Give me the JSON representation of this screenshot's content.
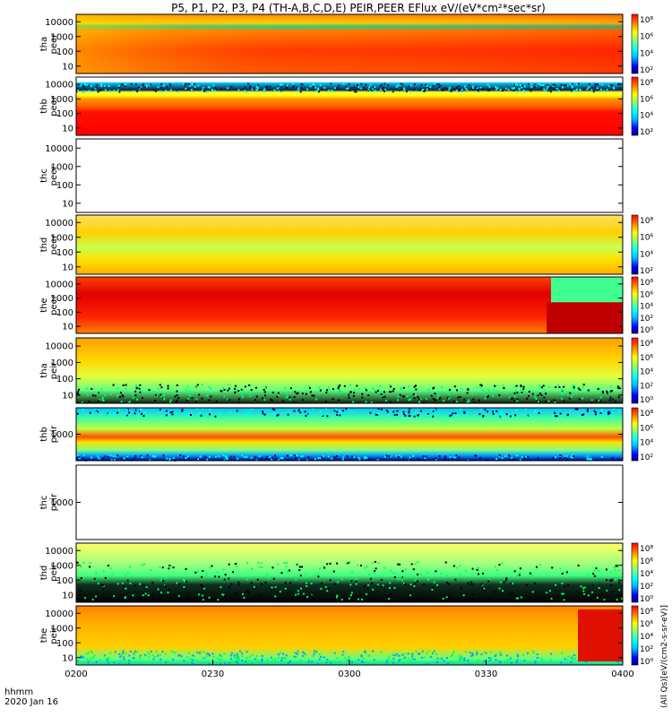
{
  "chart_data": {
    "type": "heatmap",
    "title": "P5, P1, P2, P3, P4 (TH-A,B,C,D,E) PEIR,PEER EFlux eV/(eV*cm²*sec*sr)",
    "x_axis": {
      "ticks": [
        "0200",
        "0230",
        "0300",
        "0330",
        "0400"
      ],
      "label_line1": "hhmm",
      "label_line2": "2020 Jan 16",
      "range": [
        "0200",
        "0400"
      ]
    },
    "colorbar_ticks": [
      "10⁸",
      "10⁶",
      "10⁴",
      "10²"
    ],
    "colorbar_ticks_e": [
      "10⁸",
      "10⁶",
      "10⁴",
      "10²",
      "10⁰"
    ],
    "panels": [
      {
        "name": "tha peer",
        "line1": "tha",
        "line2": "peer",
        "yticks": [
          "10000",
          "1000",
          "100",
          "10"
        ],
        "has_data": true,
        "colorbar": "[eV/(cm2-s-sr-eV)] (All Qs)",
        "colorbar_scale": "4"
      },
      {
        "name": "thb peer",
        "line1": "thb",
        "line2": "peer",
        "yticks": [
          "10000",
          "1000",
          "100",
          "10"
        ],
        "has_data": true,
        "colorbar": "[eV/(cm2-s-sr-eV)] (All Qs)",
        "colorbar_scale": "4"
      },
      {
        "name": "thc peer",
        "line1": "thc",
        "line2": "peer",
        "yticks": [
          "10000",
          "1000",
          "100",
          "10"
        ],
        "has_data": false,
        "colorbar": "",
        "colorbar_scale": ""
      },
      {
        "name": "thd peer",
        "line1": "thd",
        "line2": "peer",
        "yticks": [
          "10000",
          "1000",
          "100",
          "10"
        ],
        "has_data": true,
        "colorbar": "[eV/(cm2-s-sr-eV)] (All Qs)",
        "colorbar_scale": "4"
      },
      {
        "name": "the peer",
        "line1": "the",
        "line2": "peer",
        "yticks": [
          "10000",
          "1000",
          "100",
          "10"
        ],
        "has_data": true,
        "colorbar": "[eV/(cm2-s-sr-eV)] (All Qs)",
        "colorbar_scale": "4e"
      },
      {
        "name": "tha peir",
        "line1": "tha",
        "line2": "peir",
        "yticks": [
          "10000",
          "1000",
          "100",
          "10"
        ],
        "has_data": true,
        "colorbar": "[eV/(cm2-s-sr-eV)] (All Qs)",
        "colorbar_scale": "4e"
      },
      {
        "name": "thb peir",
        "line1": "thb",
        "line2": "peir",
        "yticks": [
          "1000"
        ],
        "has_data": true,
        "colorbar": "[eV/(cm2-s-sr-eV)] (All Qs)",
        "colorbar_scale": "4"
      },
      {
        "name": "thc peir",
        "line1": "thc",
        "line2": "peir",
        "yticks": [
          "1000"
        ],
        "has_data": false,
        "colorbar": "",
        "colorbar_scale": ""
      },
      {
        "name": "thd peir",
        "line1": "thd",
        "line2": "peir",
        "yticks": [
          "10000",
          "1000",
          "100",
          "10"
        ],
        "has_data": true,
        "colorbar": "[eV/(cm2-s-sr-eV)] (All Qs)",
        "colorbar_scale": "4e"
      },
      {
        "name": "the peir",
        "line1": "the",
        "line2": "peir",
        "yticks": [
          "10000",
          "1000",
          "100",
          "10"
        ],
        "has_data": true,
        "colorbar": "[eV/(cm2-s-sr-eV)] (All Qs)",
        "colorbar_scale": "4e"
      }
    ],
    "right_axis_label": "(All Qs)[eV/(cm2-s-sr-eV)]",
    "colormap": [
      "#000080",
      "#0000ff",
      "#00bfff",
      "#00ffff",
      "#7fff7f",
      "#ffff00",
      "#ff8000",
      "#ff0000"
    ]
  }
}
